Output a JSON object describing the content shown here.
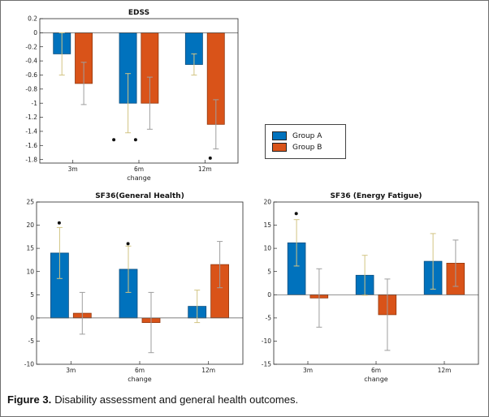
{
  "figure": {
    "caption_label": "Figure 3.",
    "caption_text": "Disability assessment and general health outcomes."
  },
  "legend": {
    "position": "middle-right",
    "entries": [
      {
        "label": "Group A",
        "color": "#0072BD"
      },
      {
        "label": "Group B",
        "color": "#D95319"
      }
    ]
  },
  "colors": {
    "group_a": "#0072BD",
    "group_b": "#D95319",
    "group_a_edge": "#0a4e7e",
    "group_b_edge": "#93390f",
    "error_a": "#d2c483",
    "error_b": "#9e9e9e",
    "outlier": "#111111"
  },
  "chart_data": [
    {
      "id": "edss",
      "type": "bar",
      "title": "EDSS",
      "xlabel": "change",
      "categories": [
        "3m",
        "6m",
        "12m"
      ],
      "ylim": [
        -1.85,
        0.2
      ],
      "yticks": [
        0.2,
        0,
        -0.2,
        -0.4,
        -0.6,
        -0.8,
        -1,
        -1.2,
        -1.4,
        -1.6,
        -1.8
      ],
      "grid": false,
      "series": [
        {
          "name": "Group A",
          "color": "#0072BD",
          "edge": "#0a4e7e",
          "error_color": "#d2c483",
          "values": [
            -0.3,
            -1.0,
            -0.45
          ],
          "errors": [
            0.3,
            0.42,
            0.15
          ]
        },
        {
          "name": "Group B",
          "color": "#D95319",
          "edge": "#93390f",
          "error_color": "#9e9e9e",
          "values": [
            -0.72,
            -1.0,
            -1.3
          ],
          "errors": [
            0.3,
            0.37,
            0.35
          ]
        }
      ],
      "outliers": [
        {
          "cat": 1,
          "dx": -0.38,
          "y": -1.52
        },
        {
          "cat": 1,
          "dx": -0.05,
          "y": -1.52
        },
        {
          "cat": 2,
          "dx": 0.08,
          "y": -1.78
        }
      ]
    },
    {
      "id": "sf36-general-health",
      "type": "bar",
      "title": "SF36(General Health)",
      "xlabel": "change",
      "categories": [
        "3m",
        "6m",
        "12m"
      ],
      "ylim": [
        -10,
        25
      ],
      "yticks": [
        25,
        20,
        15,
        10,
        5,
        0,
        -5,
        -10
      ],
      "grid": false,
      "series": [
        {
          "name": "Group A",
          "color": "#0072BD",
          "edge": "#0a4e7e",
          "error_color": "#d2c483",
          "values": [
            14,
            10.5,
            2.5
          ],
          "errors": [
            5.5,
            5,
            3.5
          ]
        },
        {
          "name": "Group B",
          "color": "#D95319",
          "edge": "#93390f",
          "error_color": "#9e9e9e",
          "values": [
            1,
            -1,
            11.5
          ],
          "errors": [
            4.5,
            6.5,
            5
          ]
        }
      ],
      "outliers": [
        {
          "cat": 0,
          "dx": -0.17,
          "y": 20.5
        },
        {
          "cat": 1,
          "dx": -0.17,
          "y": 16
        }
      ]
    },
    {
      "id": "sf36-energy-fatigue",
      "type": "bar",
      "title": "SF36 (Energy Fatigue)",
      "xlabel": "change",
      "categories": [
        "3m",
        "6m",
        "12m"
      ],
      "ylim": [
        -15,
        20
      ],
      "yticks": [
        20,
        15,
        10,
        5,
        0,
        -5,
        -10,
        -15
      ],
      "grid": false,
      "series": [
        {
          "name": "Group A",
          "color": "#0072BD",
          "edge": "#0a4e7e",
          "error_color": "#d2c483",
          "values": [
            11.2,
            4.2,
            7.2
          ],
          "errors": [
            5,
            4.3,
            6
          ]
        },
        {
          "name": "Group B",
          "color": "#D95319",
          "edge": "#93390f",
          "error_color": "#9e9e9e",
          "values": [
            -0.7,
            -4.3,
            6.8
          ],
          "errors": [
            6.3,
            7.7,
            5
          ]
        }
      ],
      "outliers": [
        {
          "cat": 0,
          "dx": -0.17,
          "y": 17.5
        }
      ]
    }
  ]
}
